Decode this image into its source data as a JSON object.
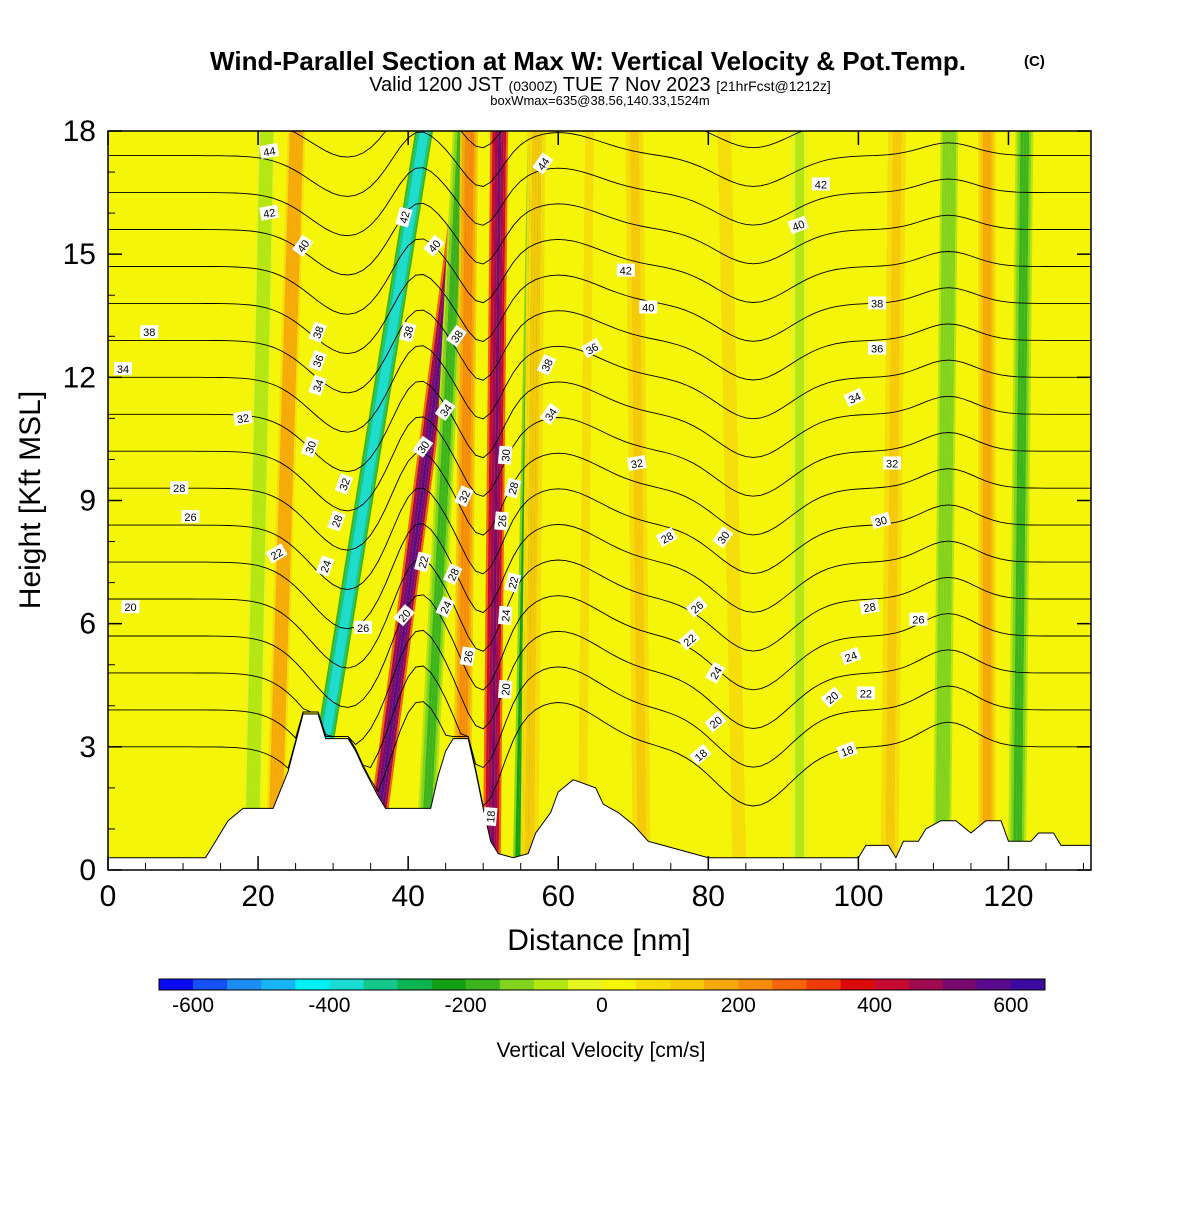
{
  "title": {
    "main": "Wind-Parallel Section at Max W: Vertical Velocity & Pot.Temp.",
    "main_unit": "(C)",
    "valid_prefix": "Valid 1200 JST",
    "valid_utc": "(0300Z)",
    "valid_date": "TUE 7 Nov 2023",
    "forecast": "[21hrFcst@1212z]",
    "boxwmax": "boxWmax=635@38.56,140.33,1524m"
  },
  "chart_data": {
    "type": "heatmap",
    "xlabel": "Distance [nm]",
    "ylabel": "Height [Kft MSL]",
    "xlim": [
      0,
      131
    ],
    "ylim": [
      0,
      18
    ],
    "xticks": [
      0,
      20,
      40,
      60,
      80,
      100,
      120
    ],
    "yticks": [
      0,
      3,
      6,
      9,
      12,
      15,
      18
    ],
    "colorbar": {
      "label": "Vertical Velocity [cm/s]",
      "ticks": [
        -600,
        -400,
        -200,
        0,
        200,
        400,
        600
      ],
      "range": [
        -650,
        650
      ],
      "step": 50,
      "colors": [
        "#0a0af0",
        "#1450f5",
        "#1e8cf5",
        "#19b4f5",
        "#00f0f5",
        "#19dcd2",
        "#14c88c",
        "#0ab450",
        "#14a014",
        "#3cb41e",
        "#82d21e",
        "#b4e614",
        "#e6f51e",
        "#f5f50a",
        "#f5dc0a",
        "#f5c80a",
        "#f5aa0a",
        "#f58c0a",
        "#f5640a",
        "#f03c0a",
        "#dc0a0a",
        "#c80a32",
        "#a00a50",
        "#780a6e",
        "#5a0a8c",
        "#3c0aa0"
      ]
    },
    "w_features": [
      {
        "x0": 2,
        "x1": 12,
        "w": 40
      },
      {
        "x0": 19,
        "x1": 21,
        "w": -80
      },
      {
        "x0": 22,
        "x1": 25,
        "w": 190
      },
      {
        "x0": 26,
        "x1": 42,
        "w": -380
      },
      {
        "x0": 35,
        "x1": 48,
        "w": 560
      },
      {
        "x0": 42,
        "x1": 47,
        "w": -180
      },
      {
        "x0": 47,
        "x1": 48,
        "w": 220
      },
      {
        "x0": 51,
        "x1": 52,
        "w": 520
      },
      {
        "x0": 55,
        "x1": 57,
        "w": -260
      },
      {
        "x0": 56,
        "x1": 57,
        "w": 120
      },
      {
        "x0": 63,
        "x1": 64,
        "w": 60
      },
      {
        "x0": 71,
        "x1": 70,
        "w": 110
      },
      {
        "x0": 84,
        "x1": 82,
        "w": 70
      },
      {
        "x0": 92,
        "x1": 92,
        "w": -60
      },
      {
        "x0": 104,
        "x1": 105,
        "w": 110
      },
      {
        "x0": 111,
        "x1": 112,
        "w": -150
      },
      {
        "x0": 117,
        "x1": 117,
        "w": 170
      },
      {
        "x0": 121,
        "x1": 122,
        "w": -160
      },
      {
        "x0": 126,
        "x1": 126,
        "w": 40
      }
    ],
    "terrain": [
      [
        0,
        0.3
      ],
      [
        13,
        0.3
      ],
      [
        14,
        0.6
      ],
      [
        15,
        0.9
      ],
      [
        16,
        1.2
      ],
      [
        18,
        1.5
      ],
      [
        22,
        1.5
      ],
      [
        24,
        2.4
      ],
      [
        25,
        3.1
      ],
      [
        26,
        3.8
      ],
      [
        28,
        3.8
      ],
      [
        29,
        3.2
      ],
      [
        32,
        3.2
      ],
      [
        33,
        2.9
      ],
      [
        34,
        2.5
      ],
      [
        36,
        1.8
      ],
      [
        37,
        1.5
      ],
      [
        43,
        1.5
      ],
      [
        44,
        2.3
      ],
      [
        45,
        2.9
      ],
      [
        46,
        3.2
      ],
      [
        48,
        3.2
      ],
      [
        49,
        2.4
      ],
      [
        50,
        1.5
      ],
      [
        51,
        0.7
      ],
      [
        52,
        0.4
      ],
      [
        54,
        0.3
      ],
      [
        56,
        0.4
      ],
      [
        57,
        0.9
      ],
      [
        59,
        1.4
      ],
      [
        60,
        1.9
      ],
      [
        62,
        2.2
      ],
      [
        65,
        2.0
      ],
      [
        66,
        1.6
      ],
      [
        68,
        1.4
      ],
      [
        70,
        1.1
      ],
      [
        72,
        0.7
      ],
      [
        74,
        0.6
      ],
      [
        76,
        0.5
      ],
      [
        78,
        0.4
      ],
      [
        80,
        0.3
      ],
      [
        100,
        0.3
      ],
      [
        101,
        0.6
      ],
      [
        104,
        0.6
      ],
      [
        105,
        0.3
      ],
      [
        106,
        0.7
      ],
      [
        108,
        0.7
      ],
      [
        109,
        1.0
      ],
      [
        111,
        1.2
      ],
      [
        113,
        1.2
      ],
      [
        115,
        0.9
      ],
      [
        117,
        1.2
      ],
      [
        119,
        1.2
      ],
      [
        120,
        0.7
      ],
      [
        123,
        0.7
      ],
      [
        124,
        0.9
      ],
      [
        126,
        0.9
      ],
      [
        127,
        0.6
      ],
      [
        131,
        0.6
      ]
    ],
    "theta_levels": [
      18,
      20,
      22,
      24,
      26,
      28,
      30,
      32,
      34,
      36,
      38,
      40,
      42,
      44
    ],
    "contour_labels": [
      {
        "text": "44",
        "x": 21.5,
        "y": 17.5,
        "rot": -10
      },
      {
        "text": "44",
        "x": 58,
        "y": 17.2,
        "rot": -55
      },
      {
        "text": "42",
        "x": 21.5,
        "y": 16.0,
        "rot": -10
      },
      {
        "text": "42",
        "x": 39.5,
        "y": 15.9,
        "rot": -75
      },
      {
        "text": "42",
        "x": 95,
        "y": 16.7,
        "rot": 0
      },
      {
        "text": "42",
        "x": 69,
        "y": 14.6,
        "rot": 0
      },
      {
        "text": "40",
        "x": 26,
        "y": 15.2,
        "rot": -55
      },
      {
        "text": "40",
        "x": 43.5,
        "y": 15.2,
        "rot": -50
      },
      {
        "text": "40",
        "x": 92,
        "y": 15.7,
        "rot": -20
      },
      {
        "text": "40",
        "x": 72,
        "y": 13.7,
        "rot": 0
      },
      {
        "text": "38",
        "x": 5.5,
        "y": 13.1,
        "rot": 0
      },
      {
        "text": "38",
        "x": 28,
        "y": 13.1,
        "rot": -70
      },
      {
        "text": "38",
        "x": 40,
        "y": 13.1,
        "rot": -75
      },
      {
        "text": "38",
        "x": 46.5,
        "y": 13.0,
        "rot": -55
      },
      {
        "text": "38",
        "x": 58.5,
        "y": 12.3,
        "rot": -65
      },
      {
        "text": "38",
        "x": 102.5,
        "y": 13.8,
        "rot": 0
      },
      {
        "text": "36",
        "x": 28,
        "y": 12.4,
        "rot": -70
      },
      {
        "text": "36",
        "x": 64.5,
        "y": 12.7,
        "rot": -30
      },
      {
        "text": "36",
        "x": 102.5,
        "y": 12.7,
        "rot": 0
      },
      {
        "text": "34",
        "x": 2,
        "y": 12.2,
        "rot": 0
      },
      {
        "text": "34",
        "x": 28,
        "y": 11.8,
        "rot": -70
      },
      {
        "text": "34",
        "x": 45,
        "y": 11.2,
        "rot": -55
      },
      {
        "text": "34",
        "x": 59,
        "y": 11.1,
        "rot": -55
      },
      {
        "text": "34",
        "x": 99.5,
        "y": 11.5,
        "rot": -25
      },
      {
        "text": "32",
        "x": 18,
        "y": 11.0,
        "rot": -10
      },
      {
        "text": "32",
        "x": 31.5,
        "y": 9.4,
        "rot": -70
      },
      {
        "text": "32",
        "x": 47.5,
        "y": 9.1,
        "rot": -65
      },
      {
        "text": "32",
        "x": 70.5,
        "y": 9.9,
        "rot": -10
      },
      {
        "text": "32",
        "x": 104.5,
        "y": 9.9,
        "rot": 0
      },
      {
        "text": "30",
        "x": 27,
        "y": 10.3,
        "rot": -70
      },
      {
        "text": "30",
        "x": 42,
        "y": 10.3,
        "rot": -55
      },
      {
        "text": "30",
        "x": 53,
        "y": 10.1,
        "rot": -85
      },
      {
        "text": "30",
        "x": 82,
        "y": 8.1,
        "rot": -55
      },
      {
        "text": "30",
        "x": 103,
        "y": 8.5,
        "rot": -15
      },
      {
        "text": "28",
        "x": 9.5,
        "y": 9.3,
        "rot": 0
      },
      {
        "text": "28",
        "x": 30.5,
        "y": 8.5,
        "rot": -70
      },
      {
        "text": "28",
        "x": 46,
        "y": 7.2,
        "rot": -65
      },
      {
        "text": "28",
        "x": 54,
        "y": 9.3,
        "rot": -75
      },
      {
        "text": "28",
        "x": 74.5,
        "y": 8.1,
        "rot": -30
      },
      {
        "text": "28",
        "x": 101.5,
        "y": 6.4,
        "rot": -10
      },
      {
        "text": "26",
        "x": 11,
        "y": 8.6,
        "rot": 0
      },
      {
        "text": "26",
        "x": 52.5,
        "y": 8.5,
        "rot": -85
      },
      {
        "text": "26",
        "x": 34,
        "y": 5.9,
        "rot": 0
      },
      {
        "text": "26",
        "x": 48,
        "y": 5.2,
        "rot": -80
      },
      {
        "text": "26",
        "x": 78.5,
        "y": 6.4,
        "rot": -40
      },
      {
        "text": "26",
        "x": 108,
        "y": 6.1,
        "rot": 0
      },
      {
        "text": "24",
        "x": 29,
        "y": 7.4,
        "rot": -70
      },
      {
        "text": "24",
        "x": 45,
        "y": 6.4,
        "rot": -65
      },
      {
        "text": "24",
        "x": 53,
        "y": 6.2,
        "rot": -85
      },
      {
        "text": "24",
        "x": 81,
        "y": 4.8,
        "rot": -60
      },
      {
        "text": "24",
        "x": 99,
        "y": 5.2,
        "rot": -20
      },
      {
        "text": "22",
        "x": 22.5,
        "y": 7.7,
        "rot": -30
      },
      {
        "text": "22",
        "x": 42,
        "y": 7.5,
        "rot": -75
      },
      {
        "text": "22",
        "x": 54,
        "y": 7.0,
        "rot": -75
      },
      {
        "text": "22",
        "x": 77.5,
        "y": 5.6,
        "rot": -40
      },
      {
        "text": "22",
        "x": 101,
        "y": 4.3,
        "rot": 0
      },
      {
        "text": "20",
        "x": 3,
        "y": 6.4,
        "rot": 0
      },
      {
        "text": "20",
        "x": 39.5,
        "y": 6.2,
        "rot": -50
      },
      {
        "text": "20",
        "x": 53,
        "y": 4.4,
        "rot": -85
      },
      {
        "text": "20",
        "x": 81,
        "y": 3.6,
        "rot": -40
      },
      {
        "text": "20",
        "x": 96.5,
        "y": 4.2,
        "rot": -40
      },
      {
        "text": "18",
        "x": 51,
        "y": 1.3,
        "rot": -85
      },
      {
        "text": "18",
        "x": 79,
        "y": 2.8,
        "rot": -40
      },
      {
        "text": "18",
        "x": 98.5,
        "y": 2.9,
        "rot": -20
      }
    ],
    "grid": false,
    "legend": "bottom colorbar"
  }
}
